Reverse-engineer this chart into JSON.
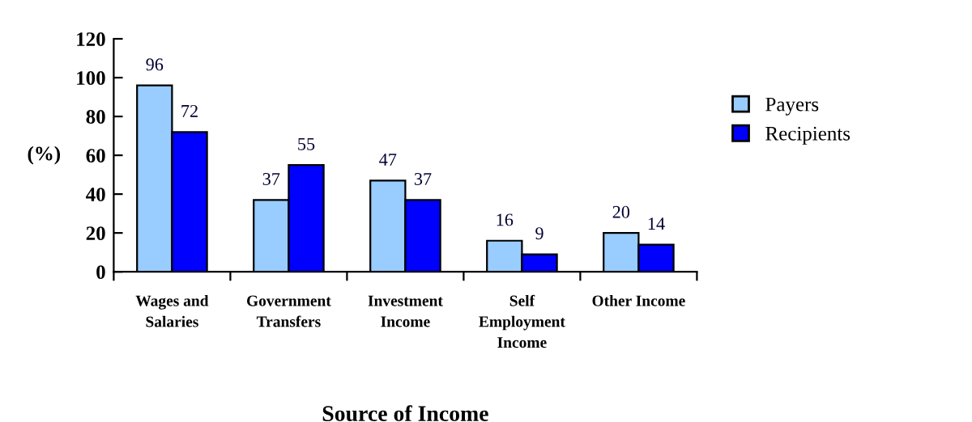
{
  "chart_data": {
    "type": "bar",
    "categories": [
      "Wages and\nSalaries",
      "Government\nTransfers",
      "Investment\nIncome",
      "Self\nEmployment\nIncome",
      "Other Income"
    ],
    "series": [
      {
        "name": "Payers",
        "color": "#99ccff",
        "values": [
          96,
          37,
          47,
          16,
          20
        ]
      },
      {
        "name": "Recipients",
        "color": "#0000ff",
        "values": [
          72,
          55,
          37,
          9,
          14
        ]
      }
    ],
    "xlabel": "Source of Income",
    "ylabel": "(%)",
    "ylim": [
      0,
      120
    ],
    "yticks": [
      0,
      20,
      40,
      60,
      80,
      100,
      120
    ],
    "data_labels": true,
    "legend": "right",
    "grid": false
  }
}
